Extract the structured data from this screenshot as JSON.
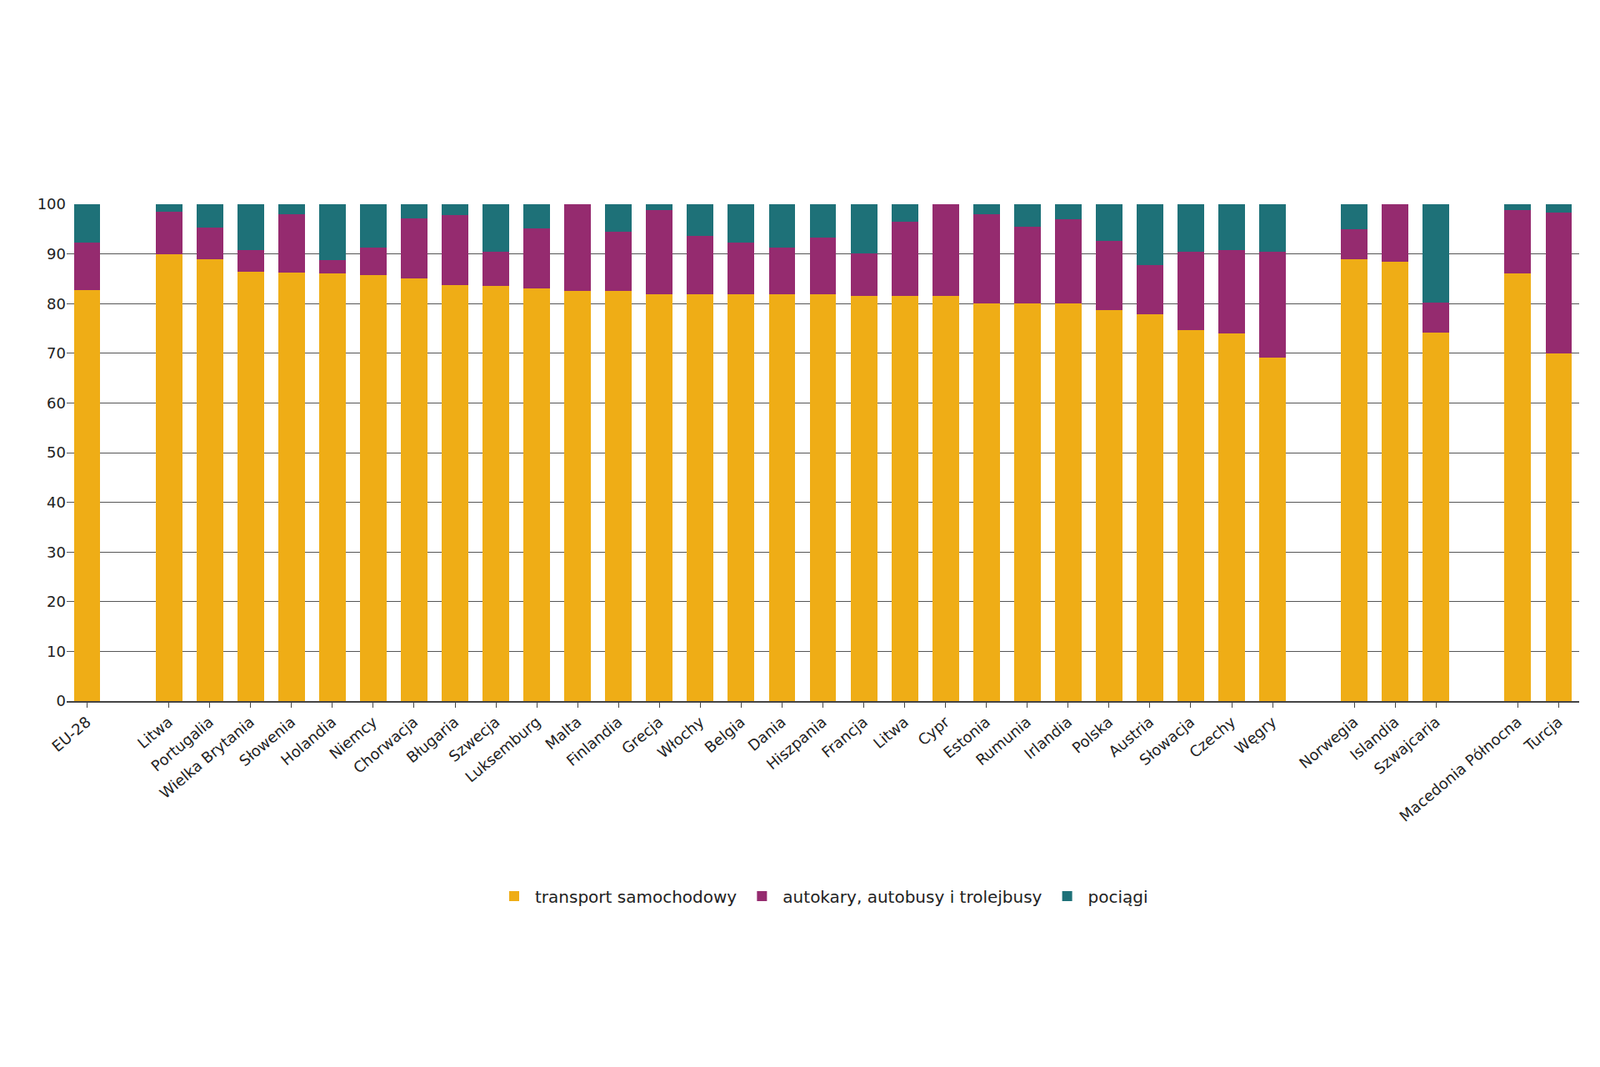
{
  "chart_data": {
    "type": "bar",
    "stacked": true,
    "grid": true,
    "legend": "bottom",
    "categories": [
      "EU-28",
      null,
      "Litwa",
      "Portugalia",
      "Wielka Brytania",
      "Słowenia",
      "Holandia",
      "Niemcy",
      "Chorwacja",
      "Bługaria",
      "Szwecja",
      "Luksemburg",
      "Malta",
      "Finlandia",
      "Grecja",
      "Włochy",
      "Belgia",
      "Dania",
      "Hiszpania",
      "Francja",
      "Litwa",
      "Cypr",
      "Estonia",
      "Rumunia",
      "Irlandia",
      "Polska",
      "Austria",
      "Słowacja",
      "Czechy",
      "Węgry",
      null,
      "Norwegia",
      "Islandia",
      "Szwajcaria",
      null,
      "Macedonia Północna",
      "Turcja"
    ],
    "series": [
      {
        "name": "transport samochodowy",
        "color": "#efad16",
        "values": [
          82.8,
          null,
          90.0,
          89.0,
          86.4,
          86.2,
          86.0,
          85.7,
          85.0,
          83.7,
          83.6,
          83.1,
          82.5,
          82.5,
          81.8,
          81.8,
          81.8,
          81.8,
          81.8,
          81.5,
          81.5,
          81.5,
          80.1,
          80.1,
          80.1,
          78.7,
          77.9,
          74.7,
          74.0,
          69.1,
          null,
          88.9,
          88.5,
          74.1,
          null,
          86.0,
          70.0
        ]
      },
      {
        "name": "autokary, autobusy i trolejbusy",
        "color": "#952b6f",
        "values": [
          9.4,
          null,
          8.5,
          6.3,
          4.3,
          11.8,
          2.7,
          5.5,
          12.2,
          14.1,
          6.8,
          12.0,
          17.5,
          11.9,
          17.0,
          11.8,
          10.5,
          9.4,
          11.5,
          8.6,
          15.0,
          18.5,
          17.9,
          15.4,
          16.9,
          13.9,
          9.9,
          15.8,
          16.8,
          21.4,
          null,
          6.0,
          11.5,
          6.1,
          null,
          12.8,
          28.3
        ]
      },
      {
        "name": "pociągi",
        "color": "#1e7178",
        "values": [
          7.8,
          null,
          1.5,
          4.7,
          9.3,
          2.0,
          11.3,
          8.8,
          2.8,
          2.2,
          9.6,
          4.9,
          0,
          5.6,
          1.2,
          6.4,
          7.7,
          8.8,
          6.7,
          9.9,
          3.5,
          0,
          2.0,
          4.5,
          3.0,
          7.4,
          12.2,
          9.5,
          9.2,
          9.5,
          null,
          5.1,
          0,
          19.8,
          null,
          1.2,
          1.7
        ]
      }
    ],
    "ylim": [
      0,
      100
    ],
    "yticks": [
      0,
      10,
      20,
      30,
      40,
      50,
      60,
      70,
      80,
      90,
      100
    ]
  }
}
